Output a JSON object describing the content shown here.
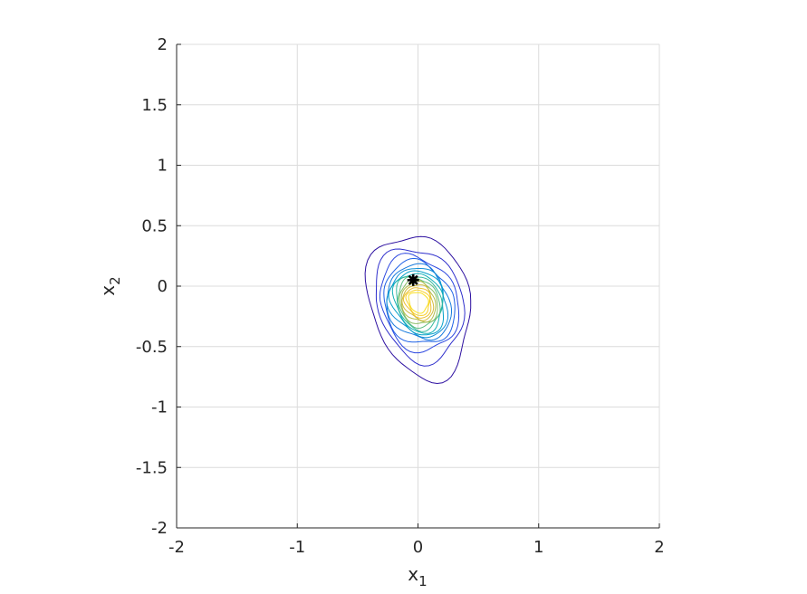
{
  "chart_data": {
    "type": "contour",
    "xlabel": "x",
    "xlabel_sub": "1",
    "ylabel": "x",
    "ylabel_sub": "2",
    "xlim": [
      -2,
      2
    ],
    "ylim": [
      -2,
      2
    ],
    "x_ticks": [
      -2,
      -1,
      0,
      1,
      2
    ],
    "y_ticks": [
      -2,
      -1.5,
      -1,
      -0.5,
      0,
      0.5,
      1,
      1.5,
      2
    ],
    "x_tick_labels": [
      "-2",
      "-1",
      "0",
      "1",
      "2"
    ],
    "y_tick_labels": [
      "-2",
      "-1.5",
      "-1",
      "-0.5",
      "0",
      "0.5",
      "1",
      "1.5",
      "2"
    ],
    "grid": true,
    "marker": {
      "x": -0.04,
      "y": 0.05,
      "symbol": "*",
      "color": "#000000"
    },
    "center": {
      "x": 0.0,
      "y": -0.12
    },
    "contour_levels": [
      {
        "level": 1,
        "color": "#2c0fa0",
        "rx": 0.42,
        "ry_top": 0.55,
        "ry_bottom": 0.64
      },
      {
        "level": 2,
        "color": "#2f2fcc",
        "rx": 0.36,
        "ry_top": 0.44,
        "ry_bottom": 0.5
      },
      {
        "level": 3,
        "color": "#2c47e0",
        "rx": 0.32,
        "ry_top": 0.37,
        "ry_bottom": 0.42
      },
      {
        "level": 4,
        "color": "#1f62e6",
        "rx": 0.29,
        "ry_top": 0.32,
        "ry_bottom": 0.37
      },
      {
        "level": 5,
        "color": "#187bdd",
        "rx": 0.26,
        "ry_top": 0.29,
        "ry_bottom": 0.33
      },
      {
        "level": 6,
        "color": "#1190d6",
        "rx": 0.24,
        "ry_top": 0.27,
        "ry_bottom": 0.3
      },
      {
        "level": 7,
        "color": "#06a1c9",
        "rx": 0.22,
        "ry_top": 0.25,
        "ry_bottom": 0.28
      },
      {
        "level": 8,
        "color": "#12b0b5",
        "rx": 0.2,
        "ry_top": 0.23,
        "ry_bottom": 0.26
      },
      {
        "level": 9,
        "color": "#37b99c",
        "rx": 0.185,
        "ry_top": 0.21,
        "ry_bottom": 0.24
      },
      {
        "level": 10,
        "color": "#5fbf82",
        "rx": 0.17,
        "ry_top": 0.19,
        "ry_bottom": 0.22
      },
      {
        "level": 11,
        "color": "#8bbf66",
        "rx": 0.155,
        "ry_top": 0.17,
        "ry_bottom": 0.2
      },
      {
        "level": 12,
        "color": "#b2bc4e",
        "rx": 0.14,
        "ry_top": 0.15,
        "ry_bottom": 0.18
      },
      {
        "level": 13,
        "color": "#d3bb3c",
        "rx": 0.125,
        "ry_top": 0.13,
        "ry_bottom": 0.16
      },
      {
        "level": 14,
        "color": "#ecc032",
        "rx": 0.11,
        "ry_top": 0.11,
        "ry_bottom": 0.14
      },
      {
        "level": 15,
        "color": "#f8cf2a",
        "rx": 0.095,
        "ry_top": 0.09,
        "ry_bottom": 0.12
      },
      {
        "level": 16,
        "color": "#f9e021",
        "rx": 0.08,
        "ry_top": 0.07,
        "ry_bottom": 0.1
      }
    ]
  }
}
